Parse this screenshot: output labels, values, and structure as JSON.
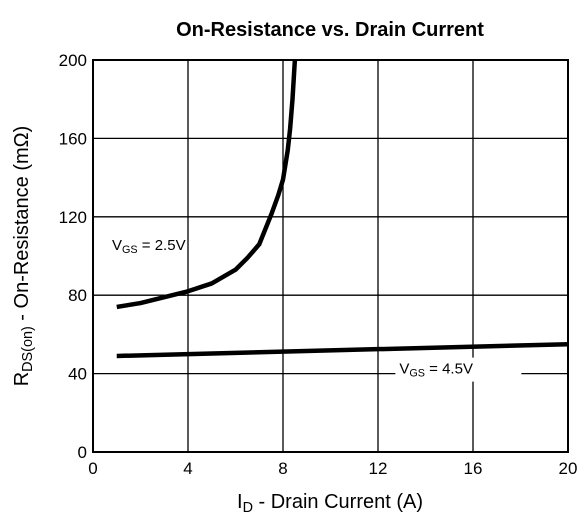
{
  "chart_data": {
    "type": "line",
    "title": "On-Resistance vs. Drain Current",
    "x_label_parts": [
      "I",
      "D",
      " - Drain Current (A)"
    ],
    "y_label_parts": [
      "R",
      "DS(on)",
      " - On-Resistance (mΩ)"
    ],
    "xlim": [
      0,
      20
    ],
    "xticks": [
      0,
      4,
      8,
      12,
      16,
      20
    ],
    "ylim": [
      0,
      200
    ],
    "yticks": [
      0,
      40,
      80,
      120,
      160,
      200
    ],
    "grid": true,
    "series": [
      {
        "label_parts": [
          "V",
          "GS",
          " = 2.5V"
        ],
        "color": "#000000",
        "x": [
          1,
          2,
          3,
          4,
          5,
          6,
          6.5,
          7,
          7.5,
          7.8,
          8,
          8.2,
          8.3,
          8.4,
          8.5
        ],
        "values": [
          74,
          76,
          79,
          82,
          86,
          93,
          99,
          106,
          121,
          131,
          139,
          154,
          165,
          180,
          200
        ]
      },
      {
        "label_parts": [
          "V",
          "GS",
          " = 4.5V"
        ],
        "color": "#000000",
        "x": [
          1,
          20
        ],
        "values": [
          49,
          55
        ]
      }
    ]
  }
}
